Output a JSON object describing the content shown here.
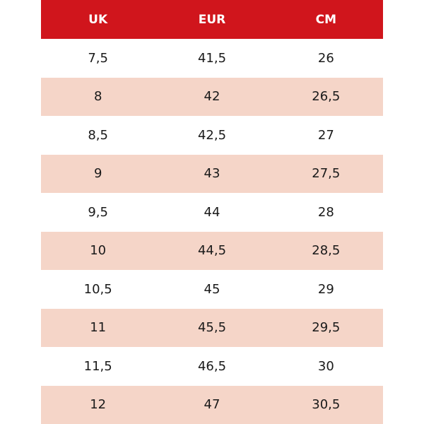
{
  "table": {
    "header": [
      "UK",
      "EUR",
      "CM"
    ],
    "rows": [
      [
        "7,5",
        "41,5",
        "26"
      ],
      [
        "8",
        "42",
        "26,5"
      ],
      [
        "8,5",
        "42,5",
        "27"
      ],
      [
        "9",
        "43",
        "27,5"
      ],
      [
        "9,5",
        "44",
        "28"
      ],
      [
        "10",
        "44,5",
        "28,5"
      ],
      [
        "10,5",
        "45",
        "29"
      ],
      [
        "11",
        "45,5",
        "29,5"
      ],
      [
        "11,5",
        "46,5",
        "30"
      ],
      [
        "12",
        "47",
        "30,5"
      ]
    ]
  }
}
